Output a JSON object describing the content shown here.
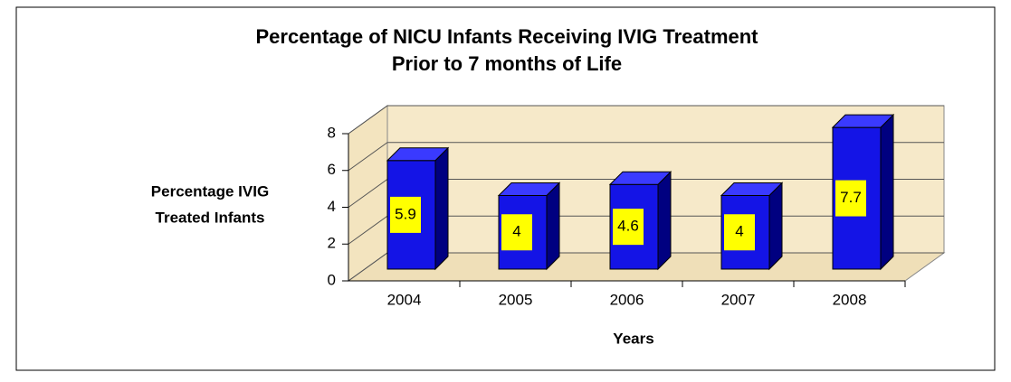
{
  "chart_data": {
    "type": "bar3d",
    "title": [
      "Percentage of NICU Infants Receiving IVIG Treatment",
      "Prior to 7 months of Life"
    ],
    "ylabel": [
      "Percentage IVIG",
      "Treated Infants"
    ],
    "xlabel": "Years",
    "categories": [
      "2004",
      "2005",
      "2006",
      "2007",
      "2008"
    ],
    "values": [
      5.9,
      4,
      4.6,
      4,
      7.7
    ],
    "color": "#1414e6",
    "label_color": "#ffff00",
    "ylim": [
      0,
      8
    ],
    "yticks": [
      0,
      2,
      4,
      6,
      8
    ],
    "grid": true
  }
}
